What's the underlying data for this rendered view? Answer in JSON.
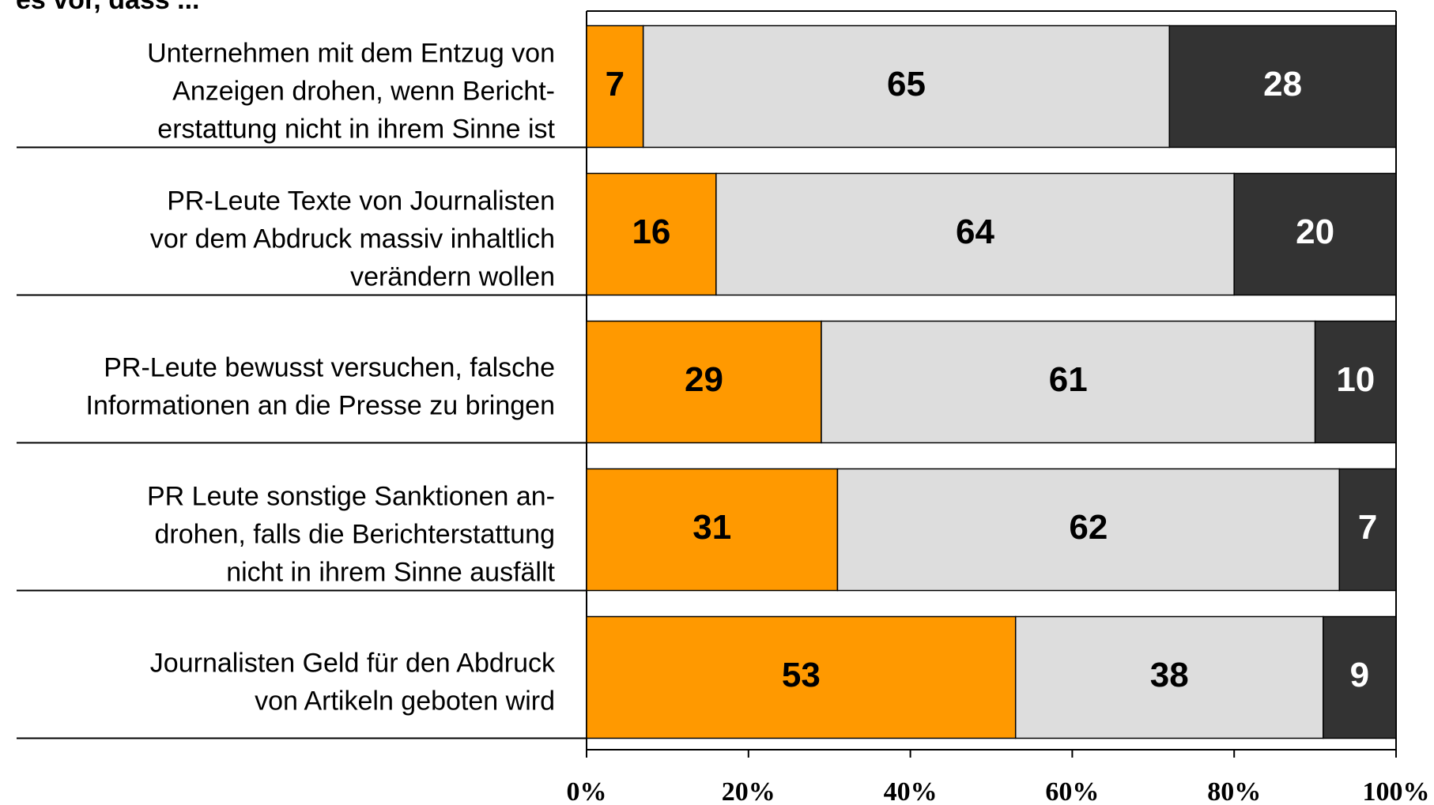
{
  "chart_data": {
    "type": "stacked-bar-horizontal",
    "title": "es vor, dass ...",
    "categories": [
      "Unternehmen mit dem Entzug von\nAnzeigen drohen, wenn Bericht-\nerstattung nicht in ihrem Sinne ist",
      "PR-Leute Texte von Journalisten\nvor dem Abdruck massiv inhaltlich\nverändern wollen",
      "PR-Leute bewusst versuchen, falsche\nInformationen an die Presse zu bringen",
      "PR Leute sonstige Sanktionen an-\ndrohen, falls die Berichterstattung\nnicht in ihrem Sinne ausfällt",
      "Journalisten Geld für den Abdruck\nvon Artikeln geboten wird"
    ],
    "series": [
      {
        "color": "#ff9900",
        "label_color": "#000000",
        "values": [
          7,
          16,
          29,
          31,
          53
        ]
      },
      {
        "color": "#dddddd",
        "label_color": "#000000",
        "values": [
          65,
          64,
          61,
          62,
          38
        ]
      },
      {
        "color": "#333333",
        "label_color": "#ffffff",
        "values": [
          28,
          20,
          10,
          7,
          9
        ]
      }
    ],
    "xlim": [
      0,
      100
    ],
    "xticks": [
      {
        "value": 0,
        "label": "0%"
      },
      {
        "value": 20,
        "label": "20%"
      },
      {
        "value": 40,
        "label": "40%"
      },
      {
        "value": 60,
        "label": "60%"
      },
      {
        "value": 80,
        "label": "80%"
      },
      {
        "value": 100,
        "label": "100%"
      }
    ]
  }
}
